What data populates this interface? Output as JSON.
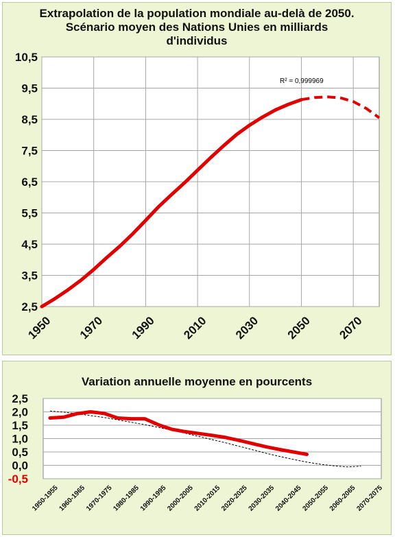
{
  "chart_data": [
    {
      "type": "line",
      "title_lines": [
        "Extrapolation de la population mondiale au-delà de 2050.",
        "Scénario moyen des Nations Unies en milliards",
        "d'individus"
      ],
      "annotation": "R² = 0,999969",
      "xlim": [
        1950,
        2080
      ],
      "ylim": [
        2.5,
        10.5
      ],
      "x_ticks": [
        "1950",
        "1970",
        "1990",
        "2010",
        "2030",
        "2050",
        "2070"
      ],
      "y_ticks": [
        "10,5",
        "9,5",
        "8,5",
        "7,5",
        "6,5",
        "5,5",
        "4,5",
        "3,5",
        "2,5"
      ],
      "series": [
        {
          "style": "solid",
          "x": [
            1950,
            1955,
            1960,
            1965,
            1970,
            1975,
            1980,
            1985,
            1990,
            1995,
            2000,
            2005,
            2010,
            2015,
            2020,
            2025,
            2030,
            2035,
            2040,
            2045,
            2050
          ],
          "y": [
            2.5,
            2.75,
            3.03,
            3.34,
            3.69,
            4.07,
            4.43,
            4.83,
            5.26,
            5.7,
            6.09,
            6.47,
            6.87,
            7.27,
            7.65,
            8.01,
            8.31,
            8.57,
            8.8,
            8.98,
            9.13
          ]
        },
        {
          "style": "dashed",
          "x": [
            2050,
            2055,
            2060,
            2065,
            2070,
            2075,
            2080
          ],
          "y": [
            9.13,
            9.2,
            9.22,
            9.19,
            9.07,
            8.85,
            8.55
          ]
        }
      ],
      "colors": {
        "line": "#e00000",
        "grid": "#a6a6a6",
        "background": "#eef5d4"
      }
    },
    {
      "type": "line",
      "title": "Variation annuelle moyenne en pourcents",
      "ylim": [
        -0.5,
        2.5
      ],
      "y_ticks": [
        "2,5",
        "2,0",
        "1,5",
        "1,0",
        "0,5",
        "0,0",
        "-0,5"
      ],
      "categories": [
        "1950-1955",
        "1955-1960",
        "1960-1965",
        "1965-1970",
        "1970-1975",
        "1975-1980",
        "1980-1985",
        "1985-1990",
        "1990-1995",
        "1995-2000",
        "2000-2005",
        "2005-2010",
        "2010-2015",
        "2015-2020",
        "2020-2025",
        "2025-2030",
        "2030-2035",
        "2035-2040",
        "2040-2045",
        "2045-2050",
        "2050-2055",
        "2055-2060",
        "2060-2065",
        "2065-2070",
        "2070-2075"
      ],
      "category_labels": [
        "1950-1955",
        "1960-1965",
        "1970-1975",
        "1980-1985",
        "1990-1995",
        "2000-2005",
        "2010-2015",
        "2020-2025",
        "2030-2035",
        "2040-2045",
        "2050-2055",
        "2060-2065",
        "2070-2075"
      ],
      "series": [
        {
          "style": "solid",
          "values": [
            1.77,
            1.8,
            1.93,
            2.0,
            1.94,
            1.77,
            1.74,
            1.74,
            1.52,
            1.35,
            1.26,
            1.19,
            1.12,
            1.04,
            0.93,
            0.81,
            0.69,
            0.59,
            0.5,
            0.41,
            null,
            null,
            null,
            null,
            null
          ]
        },
        {
          "style": "trend",
          "values": [
            2.03,
            1.99,
            1.93,
            1.86,
            1.79,
            1.7,
            1.61,
            1.52,
            1.42,
            1.31,
            1.2,
            1.08,
            0.96,
            0.84,
            0.71,
            0.58,
            0.45,
            0.33,
            0.22,
            0.12,
            0.04,
            -0.02,
            -0.06,
            -0.03,
            null
          ]
        }
      ],
      "colors": {
        "line": "#e00000",
        "trend": "#000000",
        "negative_tick": "#e00000"
      }
    }
  ]
}
